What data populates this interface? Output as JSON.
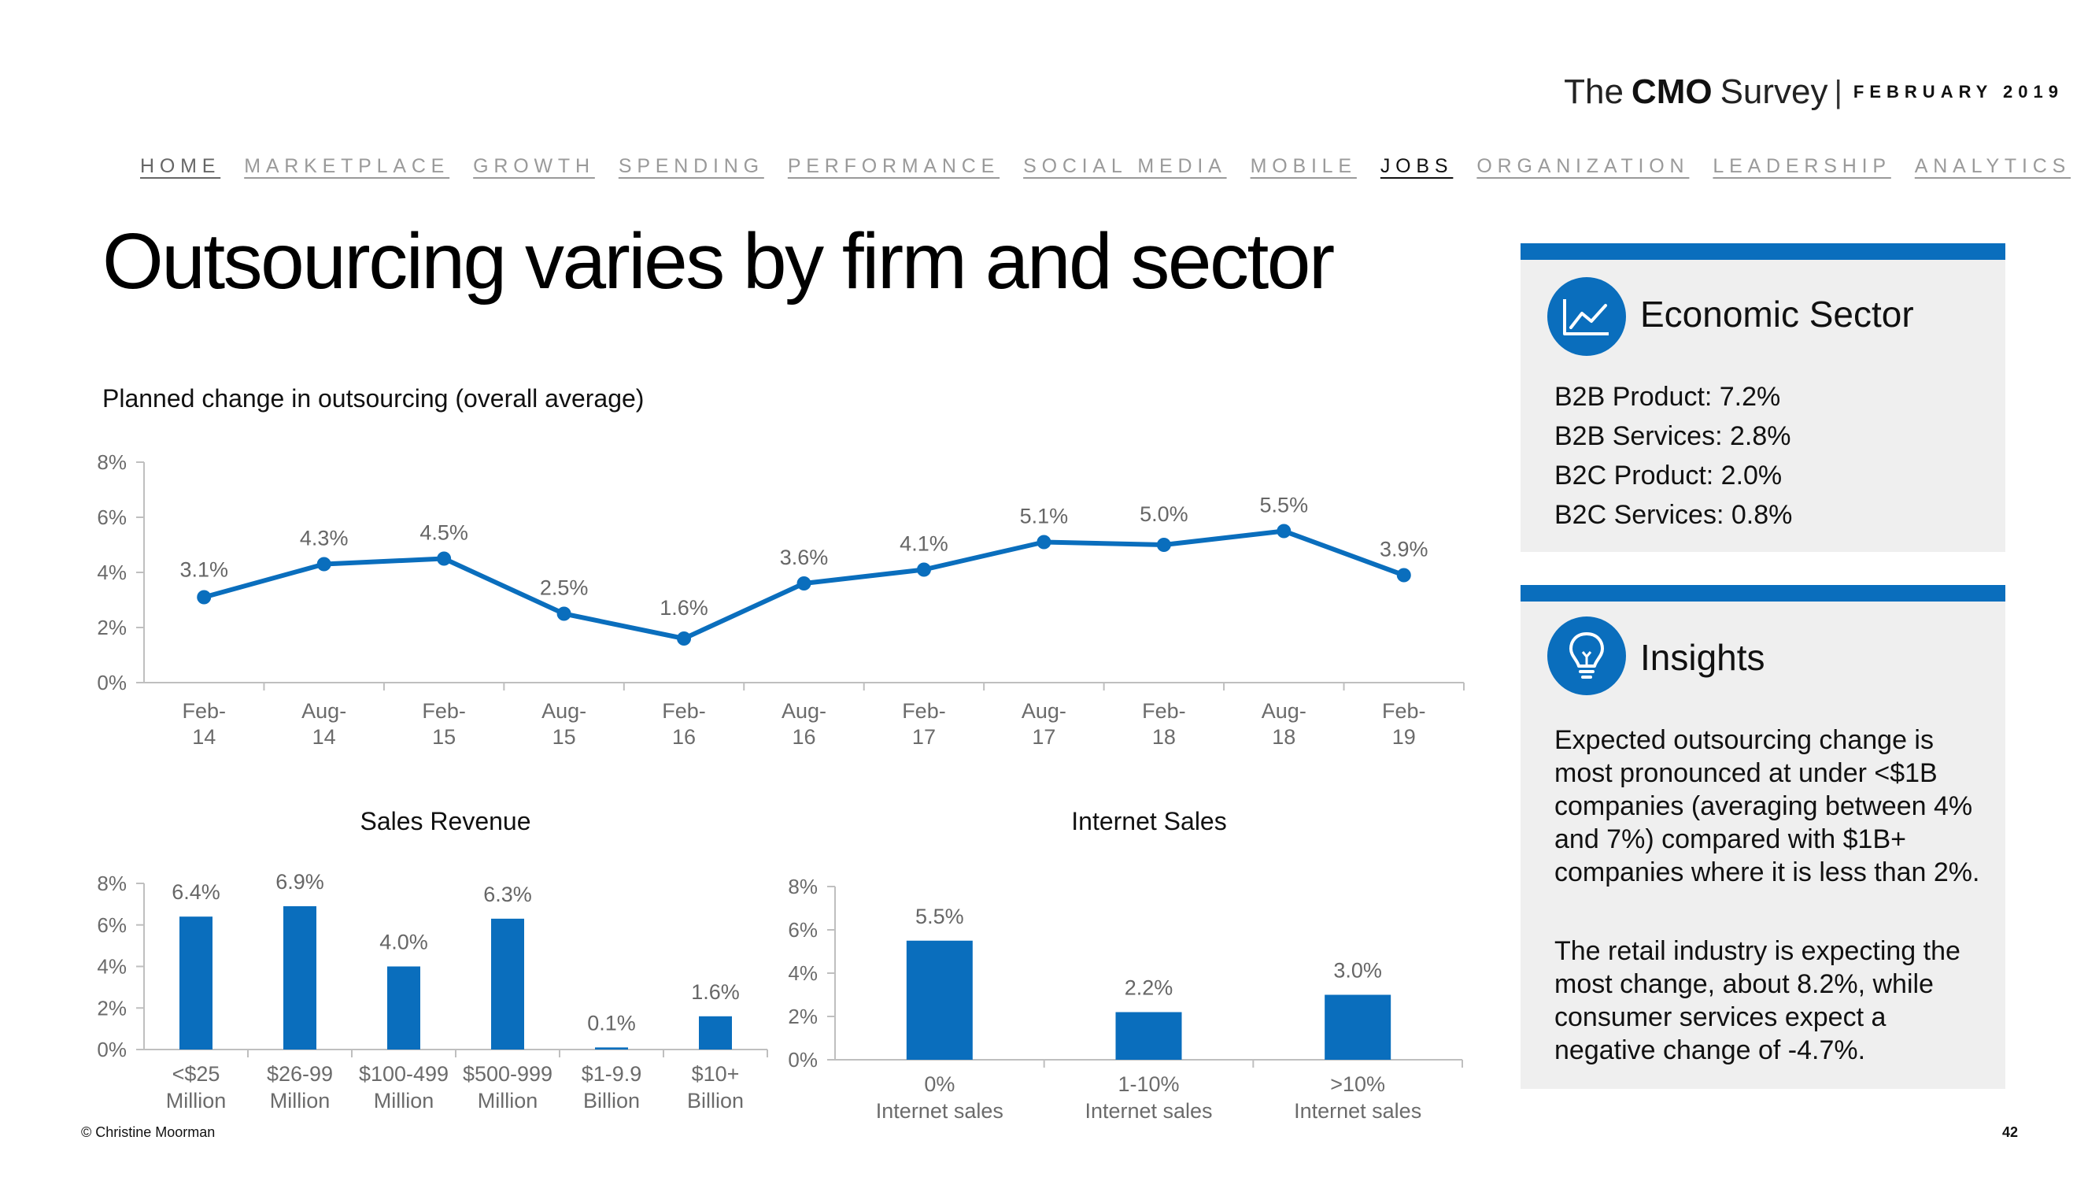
{
  "brand": {
    "the": "The",
    "cmo": "CMO",
    "survey": "Survey",
    "separator": "|",
    "date": "FEBRUARY 2019"
  },
  "nav": {
    "items": [
      "HOME",
      "MARKETPLACE",
      "GROWTH",
      "SPENDING",
      "PERFORMANCE",
      "SOCIAL MEDIA",
      "MOBILE",
      "JOBS",
      "ORGANIZATION",
      "LEADERSHIP",
      "ANALYTICS"
    ],
    "active": "JOBS"
  },
  "page_title": "Outsourcing varies by firm and sector",
  "chart_data": [
    {
      "type": "line",
      "title": "Planned change in outsourcing (overall average)",
      "categories": [
        "Feb-\n14",
        "Aug-\n14",
        "Feb-\n15",
        "Aug-\n15",
        "Feb-\n16",
        "Aug-\n16",
        "Feb-\n17",
        "Aug-\n17",
        "Feb-\n18",
        "Aug-\n18",
        "Feb-\n19"
      ],
      "values": [
        3.1,
        4.3,
        4.5,
        2.5,
        1.6,
        3.6,
        4.1,
        5.1,
        5.0,
        5.5,
        3.9
      ],
      "labels": [
        "3.1%",
        "4.3%",
        "4.5%",
        "2.5%",
        "1.6%",
        "3.6%",
        "4.1%",
        "5.1%",
        "5.0%",
        "5.5%",
        "3.9%"
      ],
      "yticks": [
        "0%",
        "2%",
        "4%",
        "6%",
        "8%"
      ],
      "ylim": [
        0,
        8
      ],
      "color": "#0a6ebd"
    },
    {
      "type": "bar",
      "title": "Sales Revenue",
      "categories": [
        "<$25\nMillion",
        "$26-99\nMillion",
        "$100-499\nMillion",
        "$500-999\nMillion",
        "$1-9.9\nBillion",
        "$10+\nBillion"
      ],
      "values": [
        6.4,
        6.9,
        4.0,
        6.3,
        0.1,
        1.6
      ],
      "labels": [
        "6.4%",
        "6.9%",
        "4.0%",
        "6.3%",
        "0.1%",
        "1.6%"
      ],
      "yticks": [
        "0%",
        "2%",
        "4%",
        "6%",
        "8%"
      ],
      "ylim": [
        0,
        8
      ],
      "color": "#0a6ebd"
    },
    {
      "type": "bar",
      "title": "Internet Sales",
      "categories": [
        "0%\nInternet sales",
        "1-10%\nInternet sales",
        ">10%\nInternet sales"
      ],
      "values": [
        5.5,
        2.2,
        3.0
      ],
      "labels": [
        "5.5%",
        "2.2%",
        "3.0%"
      ],
      "yticks": [
        "0%",
        "2%",
        "4%",
        "6%",
        "8%"
      ],
      "ylim": [
        0,
        8
      ],
      "color": "#0a6ebd"
    }
  ],
  "sector_panel": {
    "title": "Economic Sector",
    "icon": "line-chart-icon",
    "items": [
      "B2B Product: 7.2%",
      "B2B Services: 2.8%",
      "B2C Product: 2.0%",
      "B2C Services: 0.8%"
    ]
  },
  "insights_panel": {
    "title": "Insights",
    "icon": "lightbulb-icon",
    "paragraphs": [
      "Expected outsourcing change is most pronounced at under <$1B companies (averaging between 4% and 7%) compared with $1B+ companies where it is less than 2%.",
      "The retail industry is expecting the most change, about 8.2%, while consumer services expect a negative change of -4.7%."
    ]
  },
  "footer": {
    "copyright": "© Christine Moorman",
    "page_number": "42"
  },
  "colors": {
    "accent": "#0a6ebd",
    "panel_bg": "#efefef",
    "nav_inactive": "#9a9a9a"
  }
}
